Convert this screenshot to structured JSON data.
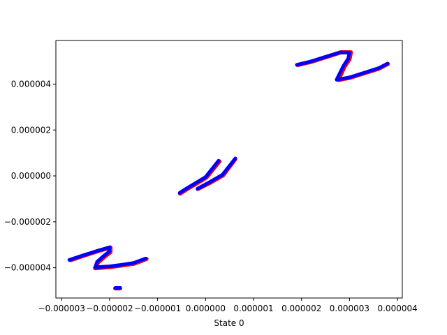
{
  "chart_data": {
    "type": "scatter",
    "title": "",
    "xlabel": "State 0",
    "ylabel": "",
    "xlim": [
      -3.12e-06,
      4.1e-06
    ],
    "ylim": [
      -5.32e-06,
      5.9e-06
    ],
    "grid": false,
    "legend": "none",
    "x_ticks": [
      {
        "value": -3e-06,
        "label": "−0.000003"
      },
      {
        "value": -2e-06,
        "label": "−0.000002"
      },
      {
        "value": -1e-06,
        "label": "−0.000001"
      },
      {
        "value": 0.0,
        "label": "0.000000"
      },
      {
        "value": 1e-06,
        "label": "0.000001"
      },
      {
        "value": 2e-06,
        "label": "0.000002"
      },
      {
        "value": 3e-06,
        "label": "0.000003"
      },
      {
        "value": 4e-06,
        "label": "0.000004"
      }
    ],
    "y_ticks": [
      {
        "value": -4e-06,
        "label": "−0.000004"
      },
      {
        "value": -2e-06,
        "label": "−0.000002"
      },
      {
        "value": 0.0,
        "label": "0.000000"
      },
      {
        "value": 2e-06,
        "label": "0.000002"
      },
      {
        "value": 4e-06,
        "label": "0.000004"
      }
    ],
    "series": [
      {
        "color": "#ff0000",
        "segments": [
          [
            [
              -2.832e-06,
              -3.65e-06
            ],
            [
              -2.55e-06,
              -3.45e-06
            ],
            [
              -2.25e-06,
              -3.25e-06
            ],
            [
              -2e-06,
              -3.1e-06
            ],
            [
              -2e-06,
              -3.3e-06
            ],
            [
              -2.12e-06,
              -3.5e-06
            ],
            [
              -2.26e-06,
              -3.75e-06
            ],
            [
              -2.32e-06,
              -4e-06
            ],
            [
              -2e-06,
              -3.95e-06
            ],
            [
              -1.75e-06,
              -3.88e-06
            ],
            [
              -1.5e-06,
              -3.8e-06
            ],
            [
              -1.25e-06,
              -3.6e-06
            ]
          ],
          [
            [
              -1.9e-06,
              -4.88e-06
            ],
            [
              -1.8e-06,
              -4.88e-06
            ]
          ],
          [
            [
              -5.5e-07,
              -7.5e-07
            ],
            [
              -4e-07,
              -5.5e-07
            ],
            [
              -2e-07,
              -3e-07
            ],
            [
              0.0,
              -5e-08
            ],
            [
              2.7e-07,
              6.5e-07
            ]
          ],
          [
            [
              -1.8e-07,
              -5.5e-07
            ],
            [
              1e-07,
              -2.5e-07
            ],
            [
              3.5e-07,
              5e-08
            ],
            [
              6e-07,
              7.5e-07
            ]
          ],
          [
            [
              1.9e-06,
              4.85e-06
            ],
            [
              2.2e-06,
              5e-06
            ],
            [
              2.5e-06,
              5.2e-06
            ],
            [
              2.8e-06,
              5.4e-06
            ],
            [
              3.01e-06,
              5.4e-06
            ],
            [
              2.98e-06,
              5.1e-06
            ],
            [
              2.88e-06,
              4.78e-06
            ],
            [
              2.75e-06,
              4.2e-06
            ],
            [
              3e-06,
              4.3e-06
            ],
            [
              3.3e-06,
              4.5e-06
            ],
            [
              3.6e-06,
              4.7e-06
            ],
            [
              3.78e-06,
              4.9e-06
            ]
          ]
        ]
      },
      {
        "color": "#0000ff",
        "segments": [
          [
            [
              -2.84e-06,
              -3.66e-06
            ],
            [
              -2.55e-06,
              -3.46e-06
            ],
            [
              -2.25e-06,
              -3.26e-06
            ],
            [
              -2e-06,
              -3.11e-06
            ],
            [
              -2.01e-06,
              -3.3e-06
            ],
            [
              -2.13e-06,
              -3.5e-06
            ],
            [
              -2.26e-06,
              -3.74e-06
            ],
            [
              -2.3e-06,
              -3.98e-06
            ],
            [
              -2e-06,
              -3.94e-06
            ],
            [
              -1.75e-06,
              -3.87e-06
            ],
            [
              -1.5e-06,
              -3.79e-06
            ],
            [
              -1.25e-06,
              -3.6e-06
            ]
          ],
          [
            [
              -1.88e-06,
              -4.88e-06
            ],
            [
              -1.78e-06,
              -4.88e-06
            ]
          ],
          [
            [
              -5.4e-07,
              -7.4e-07
            ],
            [
              -4e-07,
              -5.5e-07
            ],
            [
              -2e-07,
              -3e-07
            ],
            [
              0.0,
              -5e-08
            ],
            [
              2.7e-07,
              6.6e-07
            ]
          ],
          [
            [
              -1.7e-07,
              -5.6e-07
            ],
            [
              1e-07,
              -2.5e-07
            ],
            [
              3.5e-07,
              5e-08
            ],
            [
              6.2e-07,
              7.6e-07
            ]
          ],
          [
            [
              1.9e-06,
              4.84e-06
            ],
            [
              2.2e-06,
              4.99e-06
            ],
            [
              2.5e-06,
              5.19e-06
            ],
            [
              2.8e-06,
              5.38e-06
            ],
            [
              3e-06,
              5.37e-06
            ],
            [
              2.97e-06,
              5.1e-06
            ],
            [
              2.87e-06,
              4.78e-06
            ],
            [
              2.73e-06,
              4.19e-06
            ],
            [
              3e-06,
              4.29e-06
            ],
            [
              3.3e-06,
              4.49e-06
            ],
            [
              3.6e-06,
              4.69e-06
            ],
            [
              3.79e-06,
              4.89e-06
            ]
          ]
        ]
      }
    ]
  }
}
